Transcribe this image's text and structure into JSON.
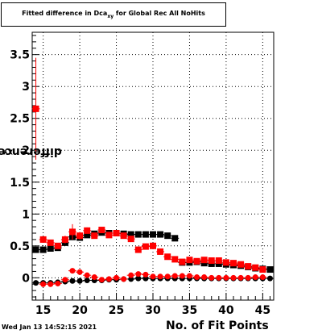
{
  "header": {
    "title_main": "Fitted difference in Dca",
    "title_sub": "xy",
    "title_tail": " for Global Rec All NoHits"
  },
  "footer": {
    "timestamp": "Wed Jan 13 14:52:15 2021"
  },
  "chart_data": {
    "type": "scatter",
    "title": "Fitted difference in Dca_xy for Global Rec All NoHits",
    "xlabel": "No. of Fit Points",
    "ylabel": "difference in Dca_xy",
    "ylabel_main": "difference in Dca",
    "ylabel_sub": "XY",
    "xlim": [
      13.5,
      46.5
    ],
    "ylim": [
      -0.35,
      3.85
    ],
    "x_ticks": [
      15,
      20,
      25,
      30,
      35,
      40,
      45
    ],
    "x_tick_labels": [
      "15",
      "20",
      "25",
      "30",
      "35",
      "40",
      "45"
    ],
    "y_ticks": [
      0,
      0.5,
      1,
      1.5,
      2,
      2.5,
      3,
      3.5
    ],
    "y_tick_labels": [
      "0",
      "0.5",
      "1",
      "1.5",
      "2",
      "2.5",
      "3",
      "3.5"
    ],
    "grid": true,
    "series": [
      {
        "color": "#000000",
        "marker": "square",
        "x": [
          14,
          15,
          16,
          17,
          18,
          19,
          20,
          21,
          22,
          23,
          24,
          25,
          26,
          27,
          28,
          29,
          30,
          31,
          32,
          33
        ],
        "y": [
          0.44,
          0.44,
          0.46,
          0.47,
          0.55,
          0.64,
          0.63,
          0.67,
          0.69,
          0.71,
          0.7,
          0.7,
          0.69,
          0.68,
          0.68,
          0.68,
          0.68,
          0.68,
          0.66,
          0.62
        ],
        "err": [
          0.02,
          0.02,
          0.02,
          0.02,
          0.02,
          0.02,
          0.02,
          0.02,
          0.02,
          0.02,
          0.02,
          0.02,
          0.02,
          0.02,
          0.02,
          0.02,
          0.02,
          0.02,
          0.02,
          0.02
        ]
      },
      {
        "color": "#000000",
        "marker": "square",
        "x": [
          34,
          35,
          36,
          37,
          38,
          39,
          40,
          41,
          42,
          43,
          44,
          45,
          46
        ],
        "y": [
          0.24,
          0.24,
          0.25,
          0.23,
          0.22,
          0.22,
          0.21,
          0.2,
          0.19,
          0.17,
          0.15,
          0.14,
          0.13
        ],
        "err": [
          0.01,
          0.01,
          0.01,
          0.01,
          0.01,
          0.01,
          0.01,
          0.01,
          0.01,
          0.01,
          0.01,
          0.01,
          0.01
        ]
      },
      {
        "color": "#ff0000",
        "marker": "square",
        "x": [
          14,
          15,
          16,
          17,
          18,
          19,
          20,
          21,
          22,
          23,
          24,
          25,
          26,
          27,
          28,
          29,
          30,
          31,
          32,
          33,
          34,
          35,
          36,
          37,
          38,
          39,
          40,
          41,
          42,
          43,
          44,
          45
        ],
        "y": [
          2.65,
          0.6,
          0.55,
          0.5,
          0.6,
          0.72,
          0.66,
          0.74,
          0.66,
          0.75,
          0.67,
          0.7,
          0.66,
          0.61,
          0.44,
          0.49,
          0.5,
          0.41,
          0.33,
          0.29,
          0.25,
          0.28,
          0.26,
          0.28,
          0.27,
          0.27,
          0.24,
          0.23,
          0.21,
          0.18,
          0.16,
          0.13
        ],
        "err": [
          0.8,
          0.05,
          0.04,
          0.04,
          0.06,
          0.12,
          0.06,
          0.05,
          0.04,
          0.04,
          0.04,
          0.03,
          0.03,
          0.03,
          0.03,
          0.03,
          0.03,
          0.03,
          0.03,
          0.03,
          0.03,
          0.03,
          0.03,
          0.03,
          0.03,
          0.03,
          0.03,
          0.03,
          0.03,
          0.03,
          0.03,
          0.03
        ]
      },
      {
        "color": "#000000",
        "marker": "circle",
        "x": [
          14,
          15,
          16,
          17,
          18,
          19,
          20,
          21,
          22,
          23,
          24,
          25,
          26,
          27,
          28,
          29,
          30,
          31,
          32,
          33,
          34,
          35,
          36,
          37,
          38,
          39,
          40,
          41,
          42,
          43,
          44,
          45,
          46
        ],
        "y": [
          -0.08,
          -0.08,
          -0.08,
          -0.07,
          -0.06,
          -0.05,
          -0.05,
          -0.04,
          -0.04,
          -0.04,
          -0.03,
          -0.03,
          -0.02,
          -0.02,
          -0.01,
          -0.01,
          -0.01,
          -0.01,
          -0.01,
          -0.01,
          -0.01,
          -0.01,
          -0.01,
          -0.01,
          -0.01,
          -0.01,
          -0.01,
          -0.01,
          -0.01,
          -0.01,
          -0.01,
          -0.01,
          -0.01
        ],
        "err": [
          0.01,
          0.01,
          0.01,
          0.01,
          0.01,
          0.01,
          0.01,
          0.01,
          0.01,
          0.01,
          0.01,
          0.01,
          0.01,
          0.01,
          0.01,
          0.01,
          0.01,
          0.01,
          0.01,
          0.01,
          0.01,
          0.01,
          0.01,
          0.01,
          0.01,
          0.01,
          0.01,
          0.01,
          0.01,
          0.01,
          0.01,
          0.01,
          0.01
        ]
      },
      {
        "color": "#ff0000",
        "marker": "circle",
        "x": [
          15,
          16,
          17,
          18,
          19,
          20,
          21,
          22,
          23,
          24,
          25,
          26,
          27,
          28,
          29,
          30,
          31,
          32,
          33,
          34,
          35,
          36,
          37,
          38,
          39,
          40,
          41,
          42,
          43,
          44,
          45
        ],
        "y": [
          -0.1,
          -0.1,
          -0.09,
          -0.03,
          0.11,
          0.09,
          0.04,
          0.01,
          -0.03,
          -0.02,
          0.0,
          -0.02,
          0.04,
          0.06,
          0.05,
          0.02,
          0.02,
          0.02,
          0.03,
          0.03,
          0.03,
          0.01,
          0.01,
          0.0,
          0.0,
          0.0,
          0.0,
          0.0,
          0.0,
          0.01,
          0.01
        ],
        "err": [
          0.03,
          0.03,
          0.03,
          0.03,
          0.04,
          0.03,
          0.03,
          0.02,
          0.02,
          0.02,
          0.02,
          0.02,
          0.02,
          0.02,
          0.02,
          0.02,
          0.02,
          0.02,
          0.02,
          0.02,
          0.02,
          0.02,
          0.02,
          0.02,
          0.02,
          0.02,
          0.02,
          0.02,
          0.02,
          0.02,
          0.02
        ]
      }
    ]
  }
}
